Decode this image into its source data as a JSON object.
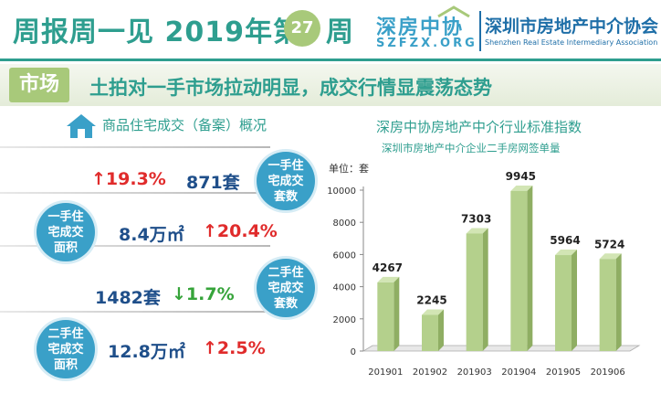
{
  "header": {
    "title": "周报周一见 2019年第",
    "issue": "27",
    "suffix": "周",
    "logo_cn": "深房中协",
    "logo_en": "SZFZX.ORG",
    "org_name": "深圳市房地产中介协会",
    "org_name_en": "Shenzhen Real Estate Intermediary Association"
  },
  "banner": {
    "tag": "市场",
    "headline": "土拍对一手市场拉动明显，成交行情显震荡态势"
  },
  "section": {
    "title": "商品住宅成交（备案）概况"
  },
  "stats": [
    {
      "circle": "一手住宅成交套数",
      "change": "19.3%",
      "direction": "up",
      "value": "871套"
    },
    {
      "circle": "一手住宅成交面积",
      "change": "20.4%",
      "direction": "up",
      "value": "8.4万㎡"
    },
    {
      "circle": "二手住宅成交套数",
      "change": "1.7%",
      "direction": "down",
      "value": "1482套"
    },
    {
      "circle": "二手住宅成交面积",
      "change": "2.5%",
      "direction": "up",
      "value": "12.8万㎡"
    }
  ],
  "arrows": {
    "up": "↑",
    "down": "↓"
  },
  "colors": {
    "accent": "#2e9e8f",
    "circle": "#3aa0c8",
    "bar": "#b4d08c",
    "up": "#e02b2b",
    "down": "#36a43a"
  },
  "chart_data": {
    "type": "bar",
    "title": "深房中协房地产中介行业标准指数",
    "subtitle": "深圳市房地产中介企业二手房网签单量",
    "unit_label": "单位：套",
    "categories": [
      "201901",
      "201902",
      "201903",
      "201904",
      "201905",
      "201906"
    ],
    "values": [
      4267,
      2245,
      7303,
      9945,
      5964,
      5724
    ],
    "ylim": [
      0,
      10000
    ],
    "yticks": [
      0,
      2000,
      4000,
      6000,
      8000,
      10000
    ],
    "grid": false,
    "legend": "none"
  }
}
